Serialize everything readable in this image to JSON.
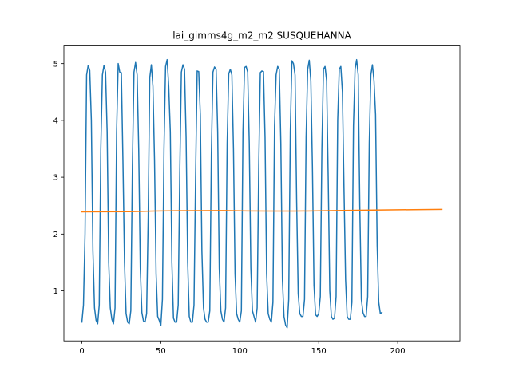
{
  "chart_data": {
    "type": "line",
    "title": "lai_gimms4g_m2_m2 SUSQUEHANNA",
    "xlabel": "",
    "ylabel": "",
    "xlim": [
      -11.4,
      239.4
    ],
    "ylim": [
      0.12,
      5.31
    ],
    "grid": false,
    "legend": "none",
    "x_ticks": [
      0,
      50,
      100,
      150,
      200
    ],
    "y_ticks": [
      1,
      2,
      3,
      4,
      5
    ],
    "series": [
      {
        "color": "#1f77b4",
        "x_start": 0,
        "x_step": 1,
        "values": [
          0.45,
          0.75,
          2.0,
          4.8,
          4.97,
          4.88,
          4.0,
          1.7,
          0.7,
          0.48,
          0.42,
          0.75,
          3.5,
          4.8,
          4.97,
          4.85,
          3.8,
          1.5,
          0.7,
          0.5,
          0.42,
          0.7,
          3.8,
          5.0,
          4.85,
          4.84,
          3.3,
          1.5,
          0.6,
          0.45,
          0.42,
          0.65,
          3.2,
          4.85,
          5.02,
          4.8,
          3.5,
          1.4,
          0.62,
          0.47,
          0.45,
          0.6,
          2.3,
          4.75,
          4.98,
          4.6,
          3.3,
          1.3,
          0.55,
          0.48,
          0.39,
          0.85,
          3.5,
          4.95,
          5.07,
          4.6,
          3.8,
          1.5,
          0.52,
          0.45,
          0.45,
          0.75,
          3.1,
          4.85,
          4.98,
          4.9,
          3.7,
          1.5,
          0.55,
          0.45,
          0.45,
          0.75,
          3.0,
          4.87,
          4.86,
          4.1,
          1.7,
          0.7,
          0.5,
          0.45,
          0.45,
          0.65,
          3.4,
          4.85,
          4.94,
          4.9,
          3.8,
          1.4,
          0.65,
          0.5,
          0.45,
          0.7,
          3.6,
          4.82,
          4.9,
          4.8,
          3.5,
          1.3,
          0.6,
          0.5,
          0.45,
          0.65,
          3.8,
          4.93,
          4.95,
          4.85,
          3.6,
          1.4,
          0.65,
          0.55,
          0.45,
          0.7,
          3.2,
          4.84,
          4.87,
          4.86,
          3.7,
          1.3,
          0.6,
          0.5,
          0.45,
          0.8,
          3.9,
          4.8,
          4.95,
          4.9,
          3.6,
          1.2,
          0.55,
          0.4,
          0.35,
          0.85,
          3.8,
          5.05,
          5.0,
          4.8,
          2.6,
          0.95,
          0.6,
          0.55,
          0.55,
          0.85,
          3.7,
          4.9,
          5.06,
          4.7,
          3.2,
          1.1,
          0.58,
          0.55,
          0.6,
          0.9,
          3.5,
          4.9,
          4.95,
          4.7,
          3.0,
          1.0,
          0.55,
          0.5,
          0.52,
          0.9,
          4.0,
          4.9,
          4.95,
          4.5,
          2.8,
          1.2,
          0.55,
          0.5,
          0.5,
          0.8,
          3.9,
          4.9,
          5.07,
          4.8,
          2.5,
          0.85,
          0.62,
          0.55,
          0.55,
          0.9,
          3.6,
          4.8,
          4.98,
          4.7,
          4.1,
          1.8,
          0.8,
          0.6,
          0.62
        ]
      },
      {
        "color": "#ff7f0e",
        "x_start": 0,
        "x_step": 1,
        "knots_x": [
          0,
          30,
          45,
          60,
          75,
          90,
          105,
          120,
          135,
          150,
          165,
          180,
          195,
          210,
          228
        ],
        "knots_y": [
          2.39,
          2.395,
          2.405,
          2.41,
          2.412,
          2.413,
          2.407,
          2.404,
          2.404,
          2.408,
          2.415,
          2.42,
          2.425,
          2.43,
          2.435
        ]
      }
    ]
  }
}
